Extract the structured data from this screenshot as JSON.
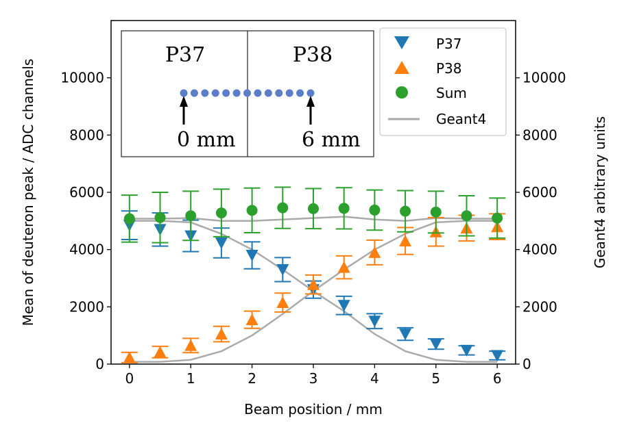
{
  "chart_data": {
    "type": "scatter",
    "xlabel": "Beam position / mm",
    "ylabel": "Mean of deuteron peak / ADC channels",
    "ylabel_right": "Geant4 arbitrary units",
    "xlim": [
      -0.3,
      6.3
    ],
    "ylim": [
      0,
      12000
    ],
    "xticks": [
      0,
      1,
      2,
      3,
      4,
      5,
      6
    ],
    "yticks": [
      0,
      2000,
      4000,
      6000,
      8000,
      10000
    ],
    "grid": false,
    "legend_position": "top-right",
    "x": [
      0,
      0.5,
      1,
      1.5,
      2,
      2.5,
      3,
      3.5,
      4,
      4.5,
      5,
      5.5,
      6
    ],
    "series": [
      {
        "name": "P37",
        "marker": "triangle-down",
        "color": "#1f77b4",
        "values": [
          4850,
          4700,
          4480,
          4230,
          3800,
          3300,
          2600,
          2050,
          1500,
          1050,
          700,
          480,
          300
        ],
        "errors": [
          500,
          580,
          550,
          520,
          470,
          420,
          300,
          320,
          260,
          220,
          180,
          160,
          150
        ]
      },
      {
        "name": "P38",
        "marker": "triangle-up",
        "color": "#ff7f0e",
        "values": [
          230,
          420,
          650,
          1050,
          1550,
          2150,
          2780,
          3380,
          3900,
          4300,
          4620,
          4750,
          4800
        ],
        "errors": [
          180,
          200,
          250,
          270,
          300,
          330,
          330,
          400,
          430,
          470,
          500,
          450,
          450
        ]
      },
      {
        "name": "Sum",
        "marker": "circle",
        "color": "#2ca02c",
        "values": [
          5080,
          5120,
          5180,
          5280,
          5370,
          5460,
          5430,
          5440,
          5380,
          5340,
          5310,
          5180,
          5100
        ],
        "errors": [
          820,
          880,
          860,
          830,
          780,
          720,
          700,
          720,
          700,
          720,
          730,
          700,
          700
        ]
      }
    ],
    "lines": [
      {
        "name": "Geant4",
        "color": "#aaaaaa",
        "x": [
          0,
          0.5,
          1,
          1.5,
          2,
          2.5,
          3,
          3.5,
          4,
          4.5,
          5,
          5.5,
          6
        ],
        "values": [
          5000,
          5000,
          4950,
          4550,
          4000,
          3300,
          2550,
          1850,
          1050,
          450,
          150,
          80,
          80
        ]
      },
      {
        "name": "Geant4",
        "color": "#aaaaaa",
        "x": [
          0,
          0.5,
          1,
          1.5,
          2,
          2.5,
          3,
          3.5,
          4,
          4.5,
          5,
          5.5,
          6
        ],
        "values": [
          80,
          80,
          150,
          450,
          1000,
          1750,
          2550,
          3300,
          4000,
          4550,
          4950,
          5000,
          5000
        ]
      },
      {
        "name": "Geant4",
        "color": "#aaaaaa",
        "x": [
          0,
          0.5,
          1,
          1.5,
          2,
          2.5,
          3,
          3.5,
          4,
          4.5,
          5,
          5.5,
          6
        ],
        "values": [
          5080,
          5080,
          5100,
          5000,
          5000,
          5050,
          5100,
          5150,
          5050,
          5000,
          5100,
          5080,
          5080
        ]
      }
    ],
    "legend": [
      "P37",
      "P38",
      "Sum",
      "Geant4"
    ],
    "inset": {
      "left_label": "P37",
      "right_label": "P38",
      "start_label": "0 mm",
      "end_label": "6 mm",
      "points": 13,
      "dot_color": "#5b7ec9"
    }
  }
}
